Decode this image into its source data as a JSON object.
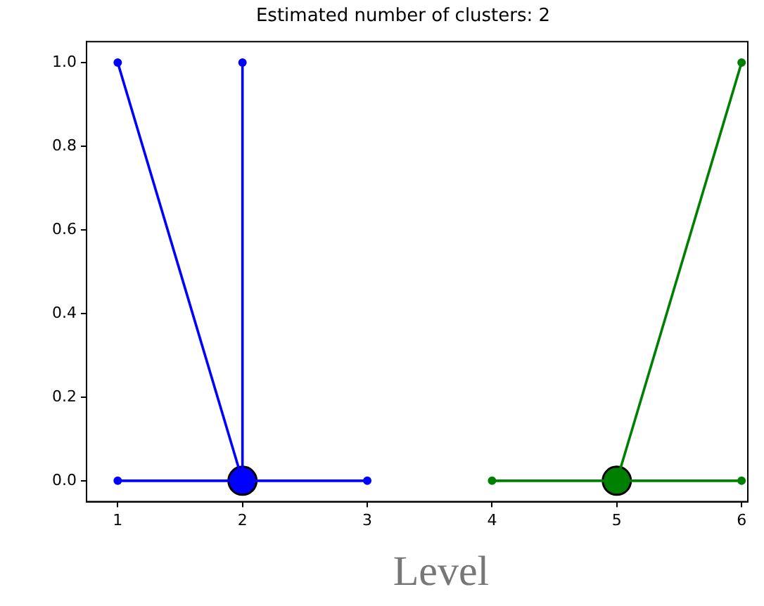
{
  "chart_data": {
    "type": "line",
    "title": "Estimated number of clusters: 2",
    "annotations": [
      "Level"
    ],
    "xlim": [
      0.75,
      6.05
    ],
    "xticks": [
      1,
      2,
      3,
      4,
      5,
      6
    ],
    "ylim": [
      -0.05,
      1.05
    ],
    "yticks": [
      {
        "value": 0,
        "label": "0.0"
      },
      0.2,
      0.4,
      0.6,
      0.8,
      {
        "value": 1,
        "label": "1.0"
      }
    ],
    "grid": false,
    "legend": false,
    "series": [
      {
        "type": "scatter",
        "color": "#0000ff",
        "x": [
          1,
          2,
          1,
          3
        ],
        "values": [
          1,
          1,
          0,
          0
        ]
      },
      {
        "type": "line",
        "color": "#0000ff",
        "x": [
          2,
          1
        ],
        "values": [
          0,
          1
        ]
      },
      {
        "type": "line",
        "color": "#0000ff",
        "x": [
          2,
          2
        ],
        "values": [
          0,
          1
        ]
      },
      {
        "type": "line",
        "color": "#0000ff",
        "x": [
          1,
          2,
          3
        ],
        "values": [
          0,
          0,
          0
        ]
      },
      {
        "type": "bubble",
        "color": "#0000ff",
        "x": [
          2
        ],
        "values": [
          0
        ],
        "sizes": [
          1
        ]
      },
      {
        "type": "scatter",
        "color": "#008000",
        "x": [
          4,
          6,
          6
        ],
        "values": [
          0,
          0,
          1
        ]
      },
      {
        "type": "line",
        "color": "#008000",
        "x": [
          4,
          5,
          6
        ],
        "values": [
          0,
          0,
          0
        ]
      },
      {
        "type": "line",
        "color": "#008000",
        "x": [
          5,
          6
        ],
        "values": [
          0,
          1
        ]
      },
      {
        "type": "bubble",
        "color": "#008000",
        "x": [
          5
        ],
        "values": [
          0
        ],
        "sizes": [
          1
        ]
      }
    ]
  }
}
